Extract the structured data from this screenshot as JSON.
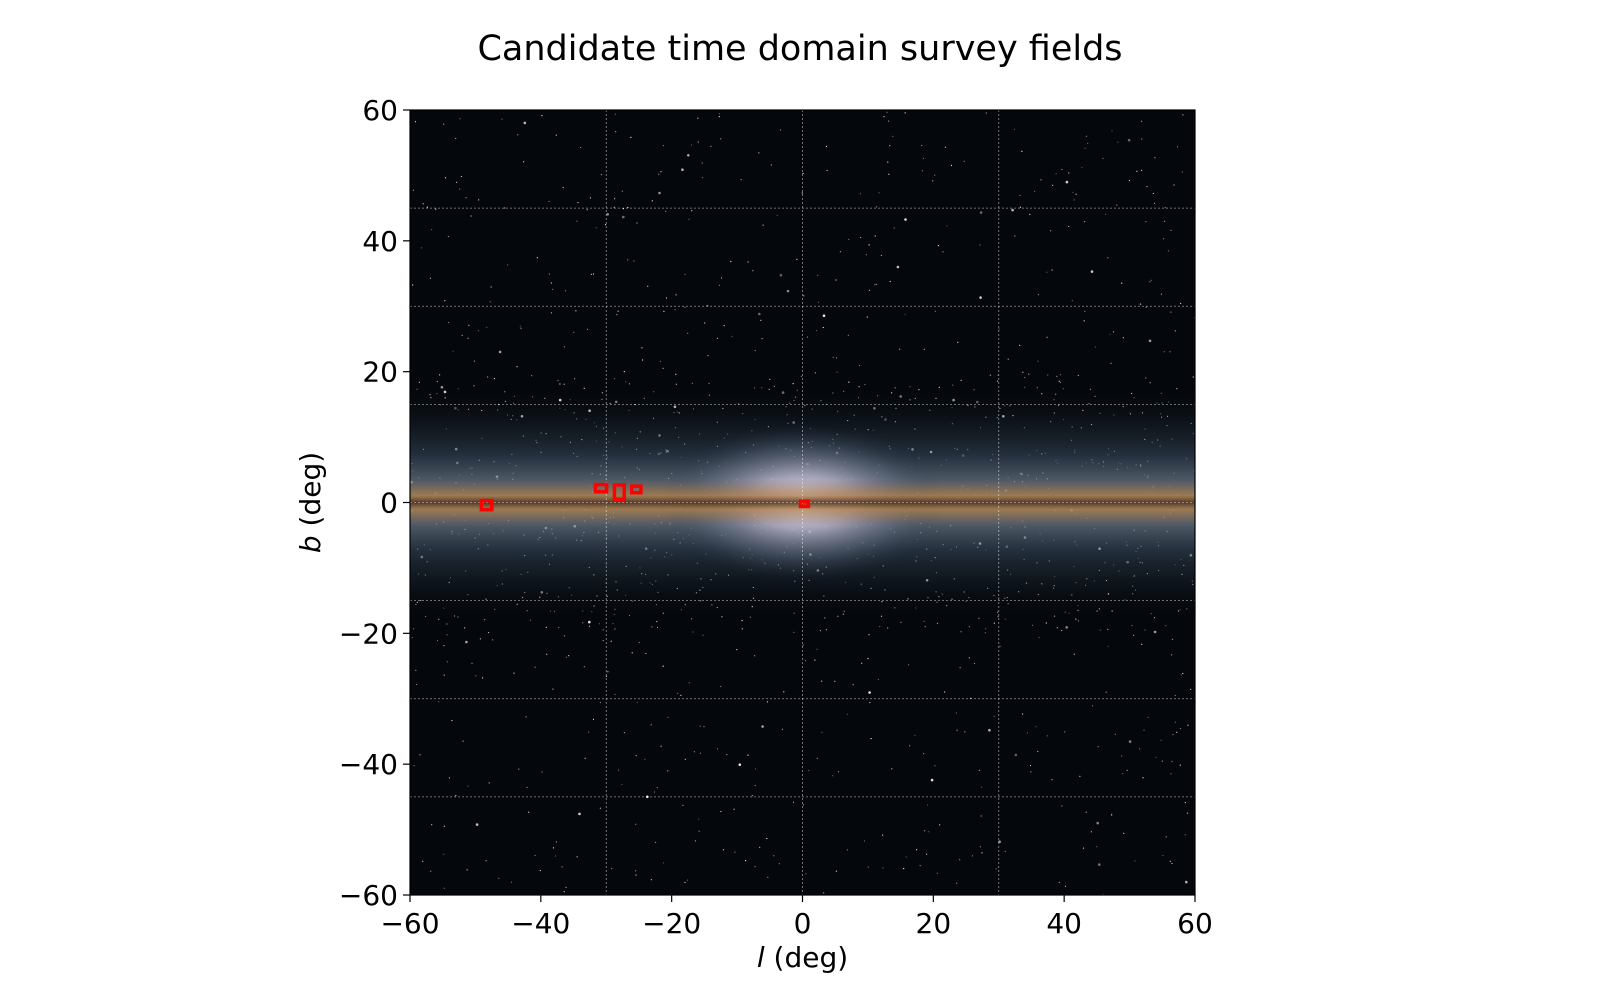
{
  "chart_data": {
    "type": "scatter",
    "title": "Candidate time domain survey fields",
    "xlabel_var": "l",
    "xlabel_unit": " (deg)",
    "ylabel_var": "b",
    "ylabel_unit": " (deg)",
    "xlim": [
      -60,
      60
    ],
    "ylim": [
      -60,
      60
    ],
    "xticks": [
      -60,
      -40,
      -20,
      0,
      20,
      40,
      60
    ],
    "yticks": [
      -60,
      -40,
      -20,
      0,
      20,
      40,
      60
    ],
    "xtick_labels": [
      "−60",
      "−40",
      "−20",
      "0",
      "20",
      "40",
      "60"
    ],
    "ytick_labels": [
      "−60",
      "−40",
      "−20",
      "0",
      "20",
      "40",
      "60"
    ],
    "grid": true,
    "grid_lines_x": [
      -30,
      0,
      30
    ],
    "grid_lines_y": [
      -45,
      -30,
      -15,
      0,
      15,
      30,
      45
    ],
    "background": "Milky Way all-sky image centred on the Galactic plane",
    "marker_color": "#ff0000",
    "fields": [
      {
        "l": -48.3,
        "b": -0.4,
        "width": 1.6,
        "height": 1.4
      },
      {
        "l": -30.8,
        "b": 2.2,
        "width": 1.7,
        "height": 1.1
      },
      {
        "l": -28.0,
        "b": 1.6,
        "width": 1.5,
        "height": 2.2
      },
      {
        "l": -25.4,
        "b": 2.0,
        "width": 1.4,
        "height": 1.0
      },
      {
        "l": 0.3,
        "b": -0.2,
        "width": 1.2,
        "height": 0.8
      }
    ]
  }
}
